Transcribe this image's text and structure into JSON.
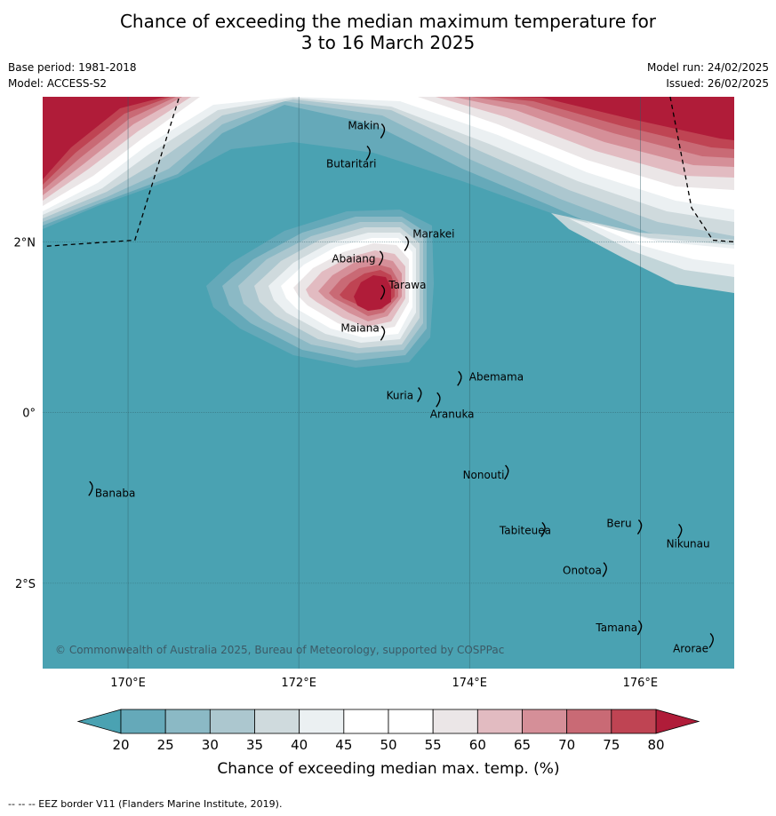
{
  "title": {
    "line1": "Chance of exceeding the median maximum temperature for",
    "line2": "3 to 16 March 2025"
  },
  "info_left": {
    "base_period": "Base period: 1981-2018",
    "model": "Model: ACCESS-S2"
  },
  "info_right": {
    "model_run": "Model run: 24/02/2025",
    "issued": "Issued: 26/02/2025"
  },
  "map": {
    "lon_range": [
      169,
      177.1
    ],
    "lat_range": [
      -3,
      3.7
    ],
    "lon_ticks": [
      {
        "value": 170,
        "label": "170°E"
      },
      {
        "value": 172,
        "label": "172°E"
      },
      {
        "value": 174,
        "label": "174°E"
      },
      {
        "value": 176,
        "label": "176°E"
      }
    ],
    "lat_ticks": [
      {
        "value": 2,
        "label": "2°N"
      },
      {
        "value": 0,
        "label": "0°"
      },
      {
        "value": -2,
        "label": "2°S"
      }
    ],
    "places": [
      {
        "name": "Makin",
        "lon": 172.97,
        "lat": 3.32
      },
      {
        "name": "Butaritari",
        "lon": 172.8,
        "lat": 3.06
      },
      {
        "name": "Marakei",
        "lon": 173.25,
        "lat": 2.0
      },
      {
        "name": "Abaiang",
        "lon": 172.95,
        "lat": 1.83
      },
      {
        "name": "Tarawa",
        "lon": 172.97,
        "lat": 1.43
      },
      {
        "name": "Maiana",
        "lon": 172.97,
        "lat": 0.95
      },
      {
        "name": "Abemama",
        "lon": 173.87,
        "lat": 0.42
      },
      {
        "name": "Kuria",
        "lon": 173.4,
        "lat": 0.23
      },
      {
        "name": "Aranuka",
        "lon": 173.62,
        "lat": 0.17
      },
      {
        "name": "Banaba",
        "lon": 169.55,
        "lat": -0.87
      },
      {
        "name": "Nonouti",
        "lon": 174.42,
        "lat": -0.68
      },
      {
        "name": "Tabiteuea",
        "lon": 174.85,
        "lat": -1.35
      },
      {
        "name": "Beru",
        "lon": 175.98,
        "lat": -1.32
      },
      {
        "name": "Nikunau",
        "lon": 176.45,
        "lat": -1.37
      },
      {
        "name": "Onotoa",
        "lon": 175.57,
        "lat": -1.82
      },
      {
        "name": "Tamana",
        "lon": 175.98,
        "lat": -2.5
      },
      {
        "name": "Arorae",
        "lon": 176.82,
        "lat": -2.65
      }
    ],
    "copyright": "© Commonwealth of Australia 2025, Bureau of Meteorology, supported by COSPPac"
  },
  "colorbar": {
    "ticks": [
      "20",
      "25",
      "30",
      "35",
      "40",
      "45",
      "50",
      "55",
      "60",
      "65",
      "70",
      "75",
      "80"
    ],
    "colors": [
      "#65a9b9",
      "#8bb9c5",
      "#acc7cf",
      "#cfdadd",
      "#ebf0f2",
      "#ffffff",
      "#ffffff",
      "#ebe6e7",
      "#e2bbc1",
      "#d58f98",
      "#c96a75",
      "#bf4453"
    ],
    "low_extend_color": "#4aa2b2",
    "high_extend_color": "#b01c39",
    "label": "Chance of exceeding median max. temp. (%)"
  },
  "footer": {
    "text": "-- -- -- EEZ border V11 (Flanders Marine Institute, 2019)."
  }
}
